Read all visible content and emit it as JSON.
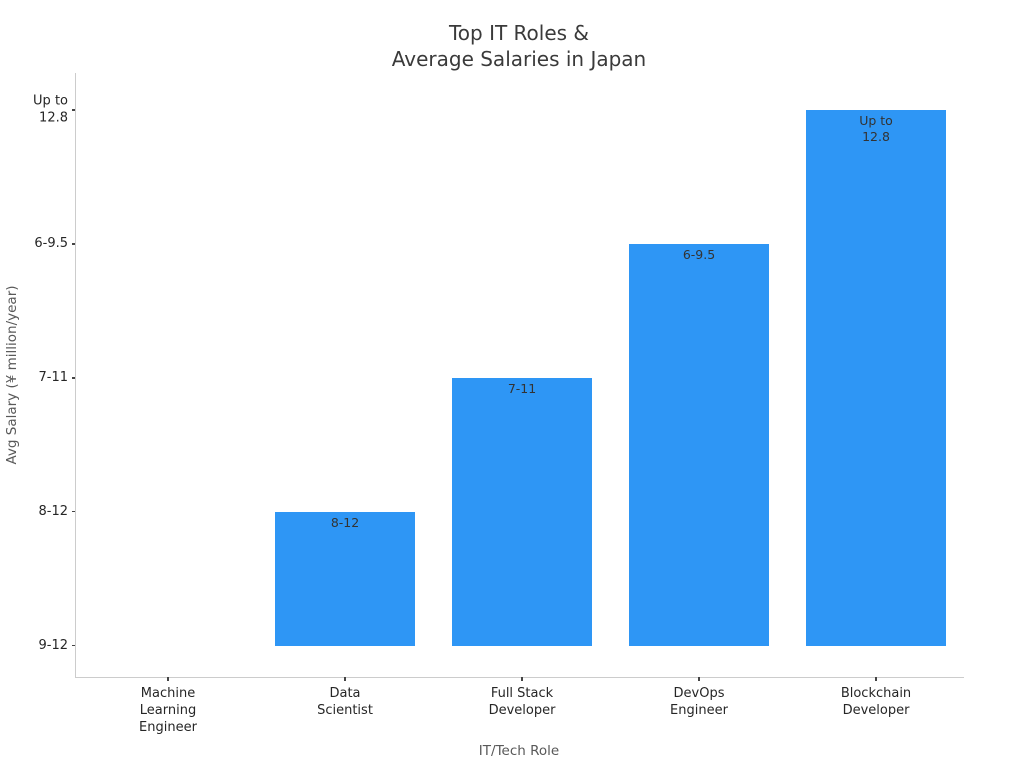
{
  "chart_data": {
    "type": "bar",
    "title": "Top IT Roles &\nAverage Salaries in Japan",
    "title_lines": [
      "Top IT Roles &",
      "Average Salaries in Japan"
    ],
    "xlabel": "IT/Tech Role",
    "ylabel": "Avg Salary (¥ million/year)",
    "categories": [
      "Machine Learning Engineer",
      "Data Scientist",
      "Full Stack Developer",
      "DevOps Engineer",
      "Blockchain Developer"
    ],
    "xtick_labels": [
      "Machine\nLearning\nEngineer",
      "Data\nScientist",
      "Full Stack\nDeveloper",
      "DevOps\nEngineer",
      "Blockchain\nDeveloper"
    ],
    "salary_ranges": [
      "",
      "8-12",
      "7-11",
      "6-9.5",
      "Up to 12.8"
    ],
    "bar_labels": [
      "",
      "8-12",
      "7-11",
      "6-9.5",
      "Up to\n12.8"
    ],
    "values": [
      1,
      2,
      3,
      4,
      5
    ],
    "bar_baseline": 1,
    "ytick_positions": [
      5,
      4,
      3,
      2,
      1
    ],
    "ytick_labels_top_to_bottom": [
      "Up to\n12.8",
      "6-9.5",
      "7-11",
      "8-12",
      "9-12"
    ],
    "ylim": [
      0.8,
      5.2
    ],
    "grid": false,
    "legend": null,
    "bar_color": "#2E96F5",
    "background_color": "#FFFFFF",
    "spine_color": "#CCCCCC"
  }
}
